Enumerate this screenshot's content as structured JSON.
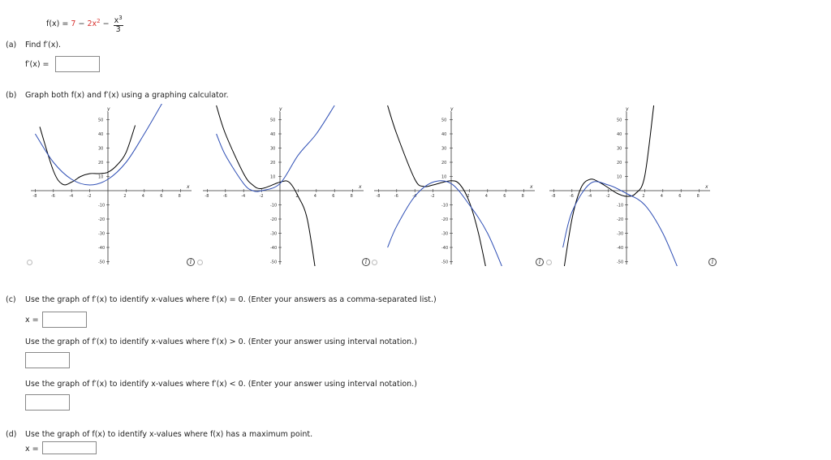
{
  "header": {
    "fx_label": "f(x) = ",
    "term1": "7",
    "minus1": " − ",
    "term2": "2x",
    "term2_exp": "2",
    "minus2": " − ",
    "frac_num": "x",
    "frac_num_exp": "3",
    "frac_den": "3"
  },
  "part_a": {
    "letter": "(a)",
    "prompt": "Find f′(x).",
    "answer_label": "f′(x) ="
  },
  "part_b": {
    "letter": "(b)",
    "prompt": "Graph both f(x) and f′(x) using a graphing calculator."
  },
  "part_c": {
    "letter": "(c)",
    "prompt1": "Use the graph of f′(x) to identify x-values where f′(x) = 0. (Enter your answers as a comma-separated list.)",
    "answer_label": "x =",
    "prompt2": "Use the graph of f′(x) to identify x-values where f′(x) > 0. (Enter your answer using interval notation.)",
    "prompt3": "Use the graph of f′(x) to identify x-values where f′(x) < 0. (Enter your answer using interval notation.)"
  },
  "part_d": {
    "letter": "(d)",
    "prompt": "Use the graph of f(x) to identify x-values where f(x) has a maximum point.",
    "answer_label": "x ="
  },
  "info_glyph": "i",
  "colors": {
    "fx_curve": "#000000",
    "fpx_curve": "#2f4fb5",
    "axis": "#333333",
    "highlight": "#d8322f"
  },
  "graph_axis": {
    "x_label": "x",
    "y_label": "y",
    "x_ticks": [
      "-8",
      "-6",
      "-4",
      "-2",
      "2",
      "4",
      "6",
      "8"
    ],
    "y_ticks": [
      "50",
      "40",
      "30",
      "20",
      "10",
      "-10",
      "-20",
      "-30",
      "-40",
      "-50"
    ]
  },
  "chart_data": [
    {
      "type": "line",
      "xlim": [
        -8,
        8
      ],
      "ylim": [
        -55,
        55
      ],
      "series": [
        {
          "curve": "black",
          "x": [
            -7.5,
            -6,
            -5,
            -4,
            -3,
            -2,
            -1,
            0,
            1,
            2,
            3
          ],
          "y": [
            45,
            14,
            4.5,
            6,
            10,
            12,
            12,
            13,
            18,
            27,
            46
          ]
        },
        {
          "curve": "blue",
          "x": [
            -8,
            -6,
            -4,
            -2,
            0,
            2,
            4,
            6
          ],
          "y": [
            40,
            20,
            8,
            4,
            8,
            20,
            40,
            62
          ]
        }
      ]
    },
    {
      "type": "line",
      "xlim": [
        -8,
        8
      ],
      "ylim": [
        -55,
        55
      ],
      "series": [
        {
          "curve": "black",
          "x": [
            -7,
            -6,
            -4,
            -3,
            -2,
            0,
            1,
            2,
            3,
            4
          ],
          "y": [
            60,
            40,
            12,
            4,
            1.5,
            6,
            6,
            -4,
            -20,
            -60
          ]
        },
        {
          "curve": "blue",
          "x": [
            -7,
            -6,
            -4,
            -3,
            -2,
            0,
            2,
            4,
            6
          ],
          "y": [
            40,
            25,
            5,
            0,
            0,
            5,
            25,
            40,
            60
          ]
        }
      ]
    },
    {
      "type": "line",
      "xlim": [
        -8,
        8
      ],
      "ylim": [
        -55,
        55
      ],
      "series": [
        {
          "curve": "black",
          "x": [
            -7,
            -6,
            -4,
            -3,
            -2,
            0,
            1,
            2,
            3,
            4
          ],
          "y": [
            60,
            40,
            8,
            3,
            4,
            7,
            4,
            -8,
            -30,
            -60
          ]
        },
        {
          "curve": "blue",
          "x": [
            -7,
            -6,
            -4,
            -2,
            0,
            2,
            4,
            6
          ],
          "y": [
            -40,
            -25,
            -4,
            6,
            5,
            -10,
            -30,
            -60
          ]
        }
      ]
    },
    {
      "type": "line",
      "xlim": [
        -8,
        8
      ],
      "ylim": [
        -55,
        55
      ],
      "series": [
        {
          "curve": "black",
          "x": [
            -7,
            -6,
            -5,
            -4,
            -3,
            -2,
            -1,
            0,
            1,
            2,
            3
          ],
          "y": [
            -60,
            -20,
            2,
            8,
            6,
            2,
            -2,
            -4,
            -2,
            10,
            60
          ]
        },
        {
          "curve": "blue",
          "x": [
            -7,
            -6,
            -4,
            -2,
            0,
            2,
            4,
            6
          ],
          "y": [
            -40,
            -15,
            5,
            4,
            -2,
            -10,
            -30,
            -60
          ]
        }
      ]
    }
  ]
}
